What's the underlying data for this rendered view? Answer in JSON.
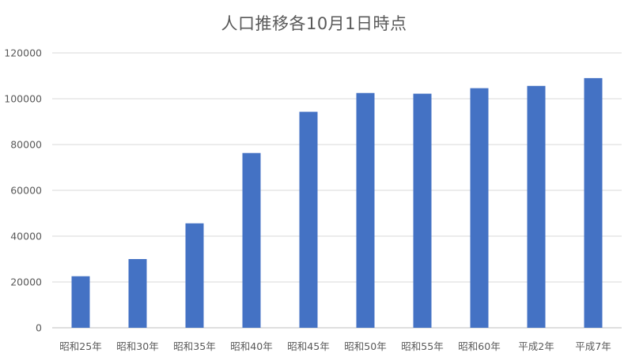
{
  "chart_data": {
    "type": "bar",
    "title": "人口推移各10月1日時点",
    "categories": [
      "昭和25年",
      "昭和30年",
      "昭和35年",
      "昭和40年",
      "昭和45年",
      "昭和50年",
      "昭和55年",
      "昭和60年",
      "平成2年",
      "平成7年"
    ],
    "series": [
      {
        "values": [
          22500,
          30000,
          45600,
          76300,
          94300,
          102500,
          102200,
          104600,
          105600,
          109000
        ],
        "color": "#4472c4"
      }
    ],
    "ylim": [
      0,
      120000
    ],
    "yticks": [
      0,
      20000,
      40000,
      60000,
      80000,
      100000,
      120000
    ],
    "grid": true,
    "legend": "none"
  }
}
